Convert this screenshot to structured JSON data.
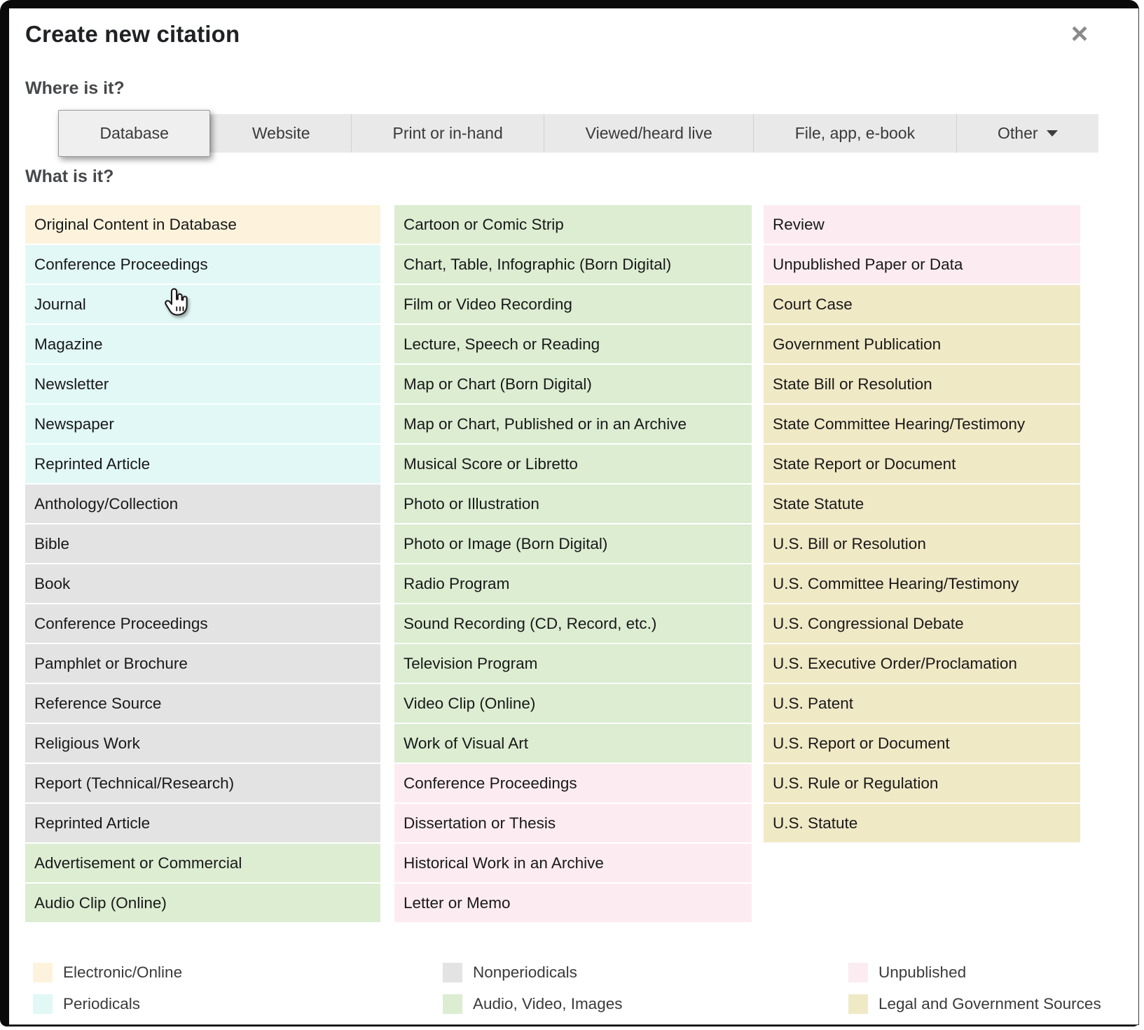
{
  "dialog": {
    "title": "Create new citation",
    "close_glyph": "×"
  },
  "where": {
    "heading": "Where is it?",
    "tabs": [
      {
        "label": "Database",
        "selected": true
      },
      {
        "label": "Website",
        "selected": false
      },
      {
        "label": "Print or in-hand",
        "selected": false
      },
      {
        "label": "Viewed/heard live",
        "selected": false
      },
      {
        "label": "File, app, e-book",
        "selected": false
      },
      {
        "label": "Other",
        "selected": false,
        "has_dropdown": true
      }
    ]
  },
  "what": {
    "heading": "What is it?",
    "columns": [
      {
        "items": [
          {
            "label": "Original Content in Database",
            "category": "electronic"
          },
          {
            "label": "Conference Proceedings",
            "category": "periodicals"
          },
          {
            "label": "Journal",
            "category": "periodicals"
          },
          {
            "label": "Magazine",
            "category": "periodicals"
          },
          {
            "label": "Newsletter",
            "category": "periodicals"
          },
          {
            "label": "Newspaper",
            "category": "periodicals"
          },
          {
            "label": "Reprinted Article",
            "category": "periodicals"
          },
          {
            "label": "Anthology/Collection",
            "category": "nonperiodicals"
          },
          {
            "label": "Bible",
            "category": "nonperiodicals"
          },
          {
            "label": "Book",
            "category": "nonperiodicals"
          },
          {
            "label": "Conference Proceedings",
            "category": "nonperiodicals"
          },
          {
            "label": "Pamphlet or Brochure",
            "category": "nonperiodicals"
          },
          {
            "label": "Reference Source",
            "category": "nonperiodicals"
          },
          {
            "label": "Religious Work",
            "category": "nonperiodicals"
          },
          {
            "label": "Report (Technical/Research)",
            "category": "nonperiodicals"
          },
          {
            "label": "Reprinted Article",
            "category": "nonperiodicals"
          },
          {
            "label": "Advertisement or Commercial",
            "category": "av"
          },
          {
            "label": "Audio Clip (Online)",
            "category": "av"
          }
        ]
      },
      {
        "items": [
          {
            "label": "Cartoon or Comic Strip",
            "category": "av"
          },
          {
            "label": "Chart, Table, Infographic (Born Digital)",
            "category": "av"
          },
          {
            "label": "Film or Video Recording",
            "category": "av"
          },
          {
            "label": "Lecture, Speech or Reading",
            "category": "av"
          },
          {
            "label": "Map or Chart (Born Digital)",
            "category": "av"
          },
          {
            "label": "Map or Chart, Published or in an Archive",
            "category": "av"
          },
          {
            "label": "Musical Score or Libretto",
            "category": "av"
          },
          {
            "label": "Photo or Illustration",
            "category": "av"
          },
          {
            "label": "Photo or Image (Born Digital)",
            "category": "av"
          },
          {
            "label": "Radio Program",
            "category": "av"
          },
          {
            "label": "Sound Recording (CD, Record, etc.)",
            "category": "av"
          },
          {
            "label": "Television Program",
            "category": "av"
          },
          {
            "label": "Video Clip (Online)",
            "category": "av"
          },
          {
            "label": "Work of Visual Art",
            "category": "av"
          },
          {
            "label": "Conference Proceedings",
            "category": "unpublished"
          },
          {
            "label": "Dissertation or Thesis",
            "category": "unpublished"
          },
          {
            "label": "Historical Work in an Archive",
            "category": "unpublished"
          },
          {
            "label": "Letter or Memo",
            "category": "unpublished"
          }
        ]
      },
      {
        "items": [
          {
            "label": "Review",
            "category": "unpublished"
          },
          {
            "label": "Unpublished Paper or Data",
            "category": "unpublished"
          },
          {
            "label": "Court Case",
            "category": "legal"
          },
          {
            "label": "Government Publication",
            "category": "legal"
          },
          {
            "label": "State Bill or Resolution",
            "category": "legal"
          },
          {
            "label": "State Committee Hearing/Testimony",
            "category": "legal"
          },
          {
            "label": "State Report or Document",
            "category": "legal"
          },
          {
            "label": "State Statute",
            "category": "legal"
          },
          {
            "label": "U.S. Bill or Resolution",
            "category": "legal"
          },
          {
            "label": "U.S. Committee Hearing/Testimony",
            "category": "legal"
          },
          {
            "label": "U.S. Congressional Debate",
            "category": "legal"
          },
          {
            "label": "U.S. Executive Order/Proclamation",
            "category": "legal"
          },
          {
            "label": "U.S. Patent",
            "category": "legal"
          },
          {
            "label": "U.S. Report or Document",
            "category": "legal"
          },
          {
            "label": "U.S. Rule or Regulation",
            "category": "legal"
          },
          {
            "label": "U.S. Statute",
            "category": "legal"
          }
        ]
      }
    ]
  },
  "legend": {
    "groups": [
      {
        "entries": [
          {
            "label": "Electronic/Online",
            "category": "electronic"
          },
          {
            "label": "Periodicals",
            "category": "periodicals"
          }
        ]
      },
      {
        "entries": [
          {
            "label": "Nonperiodicals",
            "category": "nonperiodicals"
          },
          {
            "label": "Audio, Video, Images",
            "category": "av"
          }
        ]
      },
      {
        "entries": [
          {
            "label": "Unpublished",
            "category": "unpublished"
          },
          {
            "label": "Legal and Government Sources",
            "category": "legal"
          }
        ]
      }
    ]
  },
  "colors": {
    "electronic": "#fdf3dc",
    "periodicals": "#e1f8f6",
    "nonperiodicals": "#e3e3e3",
    "av": "#dcedd2",
    "unpublished": "#fcecf1",
    "legal": "#f0e9c6",
    "tab_bar": "#e9e9e9",
    "selected_tab": "#efefef"
  }
}
